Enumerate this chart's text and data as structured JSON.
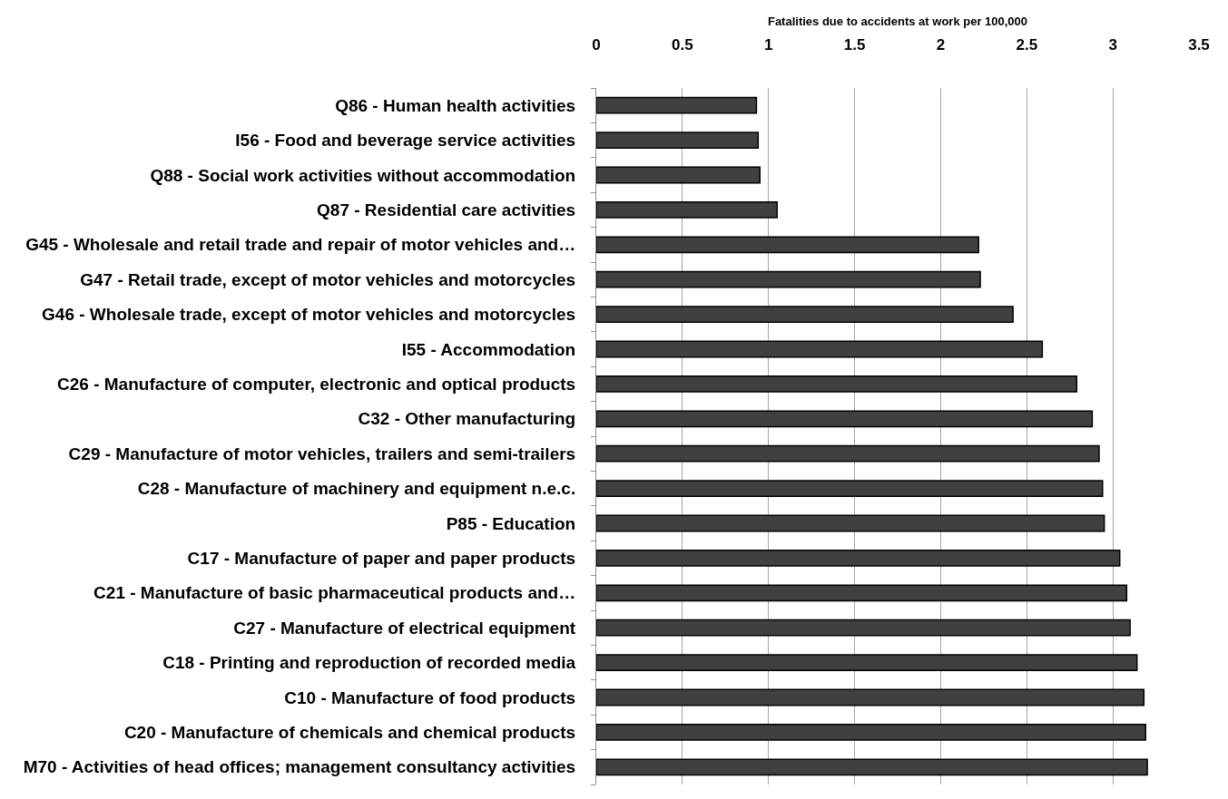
{
  "chart_data": {
    "type": "bar",
    "orientation": "horizontal",
    "xlabel": "Fatalities due to accidents at work per 100,000",
    "categories": [
      "Q86 - Human health activities",
      "I56 - Food and beverage service activities",
      "Q88 - Social work activities without accommodation",
      "Q87 - Residential care activities",
      "G45 - Wholesale and retail trade and repair of motor vehicles and…",
      "G47 - Retail trade, except of motor vehicles and motorcycles",
      "G46 - Wholesale trade, except of motor vehicles and motorcycles",
      "I55 - Accommodation",
      "C26 - Manufacture of computer, electronic and optical products",
      "C32 - Other manufacturing",
      "C29 - Manufacture of motor vehicles, trailers and semi-trailers",
      "C28 - Manufacture of machinery and equipment n.e.c.",
      "P85 - Education",
      "C17 - Manufacture of paper and paper products",
      "C21 - Manufacture of basic pharmaceutical products and…",
      "C27 - Manufacture of electrical equipment",
      "C18 - Printing and reproduction of recorded media",
      "C10 - Manufacture of food products",
      "C20 - Manufacture of chemicals and chemical products",
      "M70 - Activities of head offices; management consultancy activities"
    ],
    "values": [
      0.93,
      0.94,
      0.95,
      1.05,
      2.22,
      2.23,
      2.42,
      2.59,
      2.79,
      2.88,
      2.92,
      2.94,
      2.95,
      3.04,
      3.08,
      3.1,
      3.14,
      3.18,
      3.19,
      3.2
    ],
    "color": "#404040",
    "xlim": [
      0,
      3.5
    ],
    "xticks": [
      0,
      0.5,
      1,
      1.5,
      2,
      2.5,
      3,
      3.5
    ],
    "grid": "x"
  }
}
